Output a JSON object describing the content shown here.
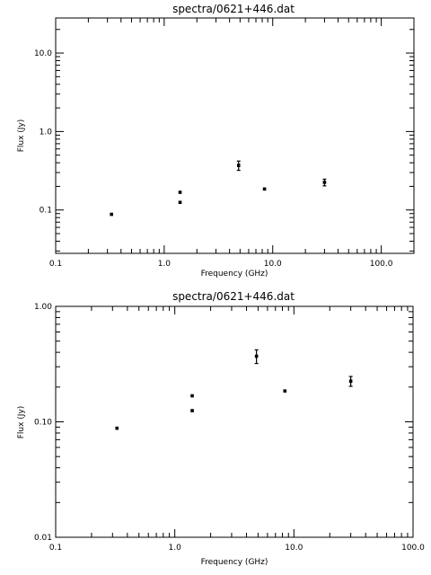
{
  "chart_data": [
    {
      "type": "scatter",
      "title": "spectra/0621+446.dat",
      "xlabel": "Frequency (GHz)",
      "ylabel": "Flux (Jy)",
      "xscale": "log",
      "yscale": "log",
      "xlim": [
        0.1,
        200
      ],
      "ylim": [
        0.028,
        28
      ],
      "grid": false,
      "x_tick_labels": [
        "0.1",
        "1.0",
        "10.0",
        "100.0"
      ],
      "y_tick_labels": [
        "0.1",
        "1.0",
        "10.0"
      ],
      "points": [
        {
          "x": 0.327,
          "y": 0.088,
          "err": 0
        },
        {
          "x": 1.4,
          "y": 0.168,
          "err": 0
        },
        {
          "x": 1.4,
          "y": 0.125,
          "err": 0
        },
        {
          "x": 4.85,
          "y": 0.37,
          "err": 0.05
        },
        {
          "x": 8.4,
          "y": 0.185,
          "err": 0
        },
        {
          "x": 30,
          "y": 0.225,
          "err": 0.022
        }
      ]
    },
    {
      "type": "scatter",
      "title": "spectra/0621+446.dat",
      "xlabel": "Frequency (GHz)",
      "ylabel": "Flux (Jy)",
      "xscale": "log",
      "yscale": "log",
      "xlim": [
        0.1,
        100
      ],
      "ylim": [
        0.01,
        1
      ],
      "grid": false,
      "x_tick_labels": [
        "0.1",
        "1.0",
        "10.0",
        "100.0"
      ],
      "y_tick_labels": [
        "0.01",
        "0.10",
        "1.00"
      ],
      "points": [
        {
          "x": 0.327,
          "y": 0.088,
          "err": 0
        },
        {
          "x": 1.4,
          "y": 0.168,
          "err": 0
        },
        {
          "x": 1.4,
          "y": 0.125,
          "err": 0
        },
        {
          "x": 4.85,
          "y": 0.37,
          "err": 0.05
        },
        {
          "x": 8.4,
          "y": 0.185,
          "err": 0
        },
        {
          "x": 30,
          "y": 0.225,
          "err": 0.022
        }
      ]
    }
  ]
}
